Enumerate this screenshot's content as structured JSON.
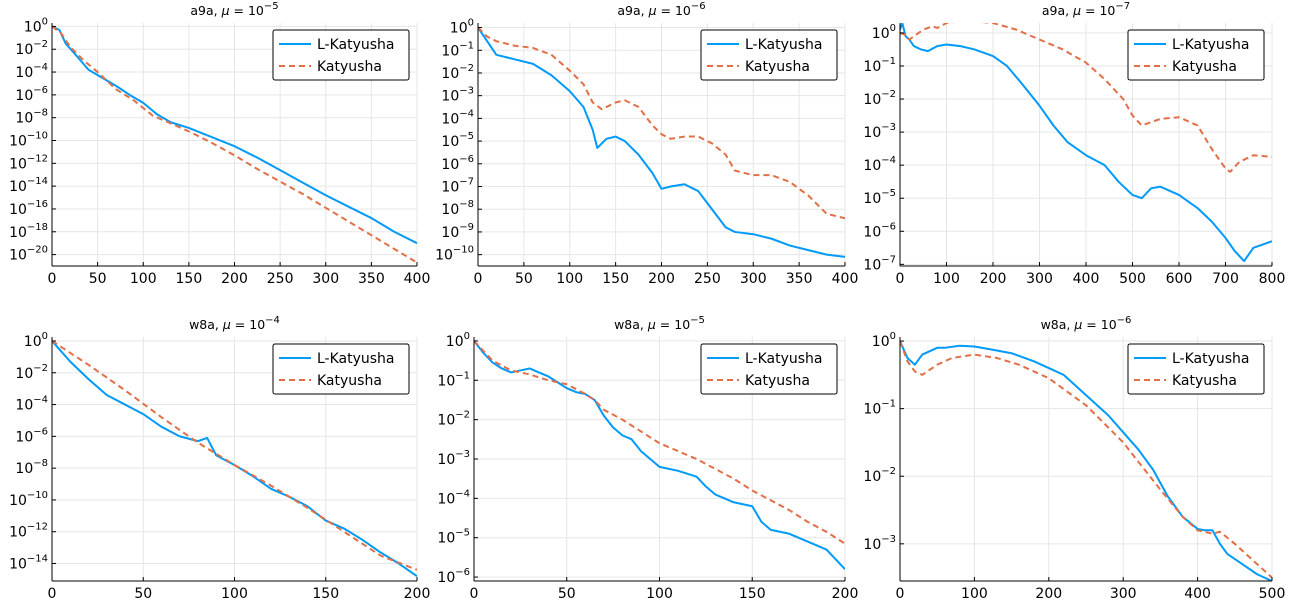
{
  "colors": {
    "l_katyusha": "#009AFA",
    "katyusha": "#E26F46",
    "grid": "#E6E6E6"
  },
  "legend": {
    "series_a": "L-Katyusha",
    "series_b": "Katyusha",
    "placement": "top-right"
  },
  "chart_data": [
    {
      "type": "line",
      "title": "a9a, μ = 10^{-5}",
      "title_parts": {
        "prefix": "a9a, ",
        "symbol": "μ",
        "eq": " = 10",
        "exp": "−5"
      },
      "yscale": "log10",
      "xlim": [
        0,
        400
      ],
      "ylim_log10": [
        -21,
        0.3
      ],
      "xticks": [
        0,
        50,
        100,
        150,
        200,
        250,
        300,
        350,
        400
      ],
      "yticks_log10": [
        0,
        -2,
        -4,
        -6,
        -8,
        -10,
        -12,
        -14,
        -16,
        -18,
        -20
      ],
      "grid": true,
      "series": [
        {
          "name": "L-Katyusha",
          "style": "solid",
          "x": [
            0,
            8,
            15,
            25,
            40,
            55,
            70,
            85,
            100,
            115,
            130,
            150,
            175,
            200,
            225,
            250,
            275,
            300,
            325,
            350,
            375,
            400
          ],
          "log10_y": [
            0,
            -0.3,
            -1.5,
            -2.4,
            -3.8,
            -4.5,
            -5.2,
            -6.0,
            -6.7,
            -7.7,
            -8.4,
            -8.9,
            -9.7,
            -10.5,
            -11.5,
            -12.6,
            -13.7,
            -14.8,
            -15.8,
            -16.8,
            -18.0,
            -19.0
          ]
        },
        {
          "name": "Katyusha",
          "style": "dashed",
          "x": [
            0,
            10,
            20,
            35,
            50,
            70,
            90,
            110,
            130,
            150,
            175,
            200,
            225,
            250,
            275,
            300,
            325,
            350,
            375,
            400
          ],
          "log10_y": [
            0,
            -0.6,
            -1.8,
            -3.0,
            -4.0,
            -5.5,
            -6.5,
            -7.8,
            -8.5,
            -9.2,
            -10.2,
            -11.3,
            -12.5,
            -13.6,
            -14.7,
            -15.9,
            -17.1,
            -18.3,
            -19.5,
            -20.7
          ]
        }
      ]
    },
    {
      "type": "line",
      "title": "a9a, μ = 10^{-6}",
      "title_parts": {
        "prefix": "a9a, ",
        "symbol": "μ",
        "eq": " = 10",
        "exp": "−6"
      },
      "yscale": "log10",
      "xlim": [
        0,
        400
      ],
      "ylim_log10": [
        -10.5,
        0.2
      ],
      "xticks": [
        0,
        50,
        100,
        150,
        200,
        250,
        300,
        350,
        400
      ],
      "yticks_log10": [
        0,
        -1,
        -2,
        -3,
        -4,
        -5,
        -6,
        -7,
        -8,
        -9,
        -10
      ],
      "grid": true,
      "series": [
        {
          "name": "L-Katyusha",
          "style": "solid",
          "x": [
            0,
            10,
            20,
            40,
            60,
            80,
            100,
            115,
            125,
            130,
            140,
            150,
            160,
            175,
            190,
            200,
            210,
            225,
            240,
            255,
            270,
            280,
            300,
            320,
            340,
            360,
            380,
            400
          ],
          "log10_y": [
            0,
            -0.6,
            -1.2,
            -1.4,
            -1.6,
            -2.1,
            -2.8,
            -3.5,
            -4.5,
            -5.3,
            -4.9,
            -4.8,
            -5.0,
            -5.6,
            -6.4,
            -7.1,
            -7.0,
            -6.9,
            -7.2,
            -8.0,
            -8.8,
            -9.0,
            -9.1,
            -9.3,
            -9.6,
            -9.8,
            -10.0,
            -10.1
          ]
        },
        {
          "name": "Katyusha",
          "style": "dashed",
          "x": [
            0,
            10,
            20,
            40,
            60,
            80,
            100,
            115,
            125,
            135,
            150,
            160,
            175,
            190,
            200,
            210,
            225,
            240,
            255,
            270,
            280,
            300,
            320,
            340,
            360,
            380,
            400
          ],
          "log10_y": [
            0,
            -0.4,
            -0.6,
            -0.8,
            -0.9,
            -1.2,
            -1.9,
            -2.5,
            -3.3,
            -3.6,
            -3.3,
            -3.2,
            -3.5,
            -4.3,
            -4.7,
            -4.9,
            -4.8,
            -4.8,
            -5.1,
            -5.6,
            -6.3,
            -6.5,
            -6.5,
            -6.8,
            -7.4,
            -8.2,
            -8.4
          ]
        }
      ]
    },
    {
      "type": "line",
      "title": "a9a, μ = 10^{-7}",
      "title_parts": {
        "prefix": "a9a, ",
        "symbol": "μ",
        "eq": " = 10",
        "exp": "−7"
      },
      "yscale": "log10",
      "xlim": [
        0,
        800
      ],
      "ylim_log10": [
        -7.05,
        0.3
      ],
      "xticks": [
        0,
        100,
        200,
        300,
        400,
        500,
        600,
        700,
        800
      ],
      "yticks_log10": [
        0,
        -1,
        -2,
        -3,
        -4,
        -5,
        -6,
        -7
      ],
      "grid": true,
      "series": [
        {
          "name": "L-Katyusha",
          "style": "solid",
          "x": [
            0,
            5,
            12,
            20,
            30,
            45,
            60,
            80,
            100,
            130,
            160,
            200,
            230,
            260,
            300,
            330,
            360,
            400,
            440,
            470,
            500,
            520,
            540,
            560,
            600,
            640,
            670,
            700,
            720,
            740,
            760,
            780,
            800
          ],
          "log10_y": [
            0.1,
            0.3,
            -0.1,
            -0.2,
            -0.4,
            -0.5,
            -0.55,
            -0.4,
            -0.35,
            -0.4,
            -0.5,
            -0.7,
            -1.0,
            -1.5,
            -2.2,
            -2.8,
            -3.3,
            -3.7,
            -4.0,
            -4.5,
            -4.9,
            -5.0,
            -4.7,
            -4.65,
            -4.9,
            -5.3,
            -5.7,
            -6.2,
            -6.6,
            -6.9,
            -6.5,
            -6.4,
            -6.3
          ]
        },
        {
          "name": "Katyusha",
          "style": "dashed",
          "x": [
            0,
            10,
            20,
            35,
            50,
            70,
            80,
            100,
            130,
            160,
            200,
            250,
            300,
            350,
            400,
            440,
            480,
            500,
            520,
            540,
            560,
            600,
            640,
            670,
            700,
            710,
            730,
            760,
            800
          ],
          "log10_y": [
            0,
            -0.05,
            -0.2,
            -0.05,
            0.1,
            0.2,
            0.15,
            0.3,
            0.35,
            0.35,
            0.3,
            0.1,
            -0.2,
            -0.5,
            -0.9,
            -1.4,
            -2.0,
            -2.5,
            -2.8,
            -2.7,
            -2.6,
            -2.55,
            -2.8,
            -3.5,
            -4.1,
            -4.2,
            -3.9,
            -3.7,
            -3.75
          ]
        }
      ]
    },
    {
      "type": "line",
      "title": "w8a, μ = 10^{-4}",
      "title_parts": {
        "prefix": "w8a, ",
        "symbol": "μ",
        "eq": " = 10",
        "exp": "−4"
      },
      "yscale": "log10",
      "xlim": [
        0,
        200
      ],
      "ylim_log10": [
        -15.1,
        0.25
      ],
      "xticks": [
        0,
        50,
        100,
        150,
        200
      ],
      "yticks_log10": [
        0,
        -2,
        -4,
        -6,
        -8,
        -10,
        -12,
        -14
      ],
      "grid": true,
      "series": [
        {
          "name": "L-Katyusha",
          "style": "solid",
          "x": [
            0,
            10,
            20,
            30,
            40,
            50,
            60,
            70,
            80,
            85,
            90,
            100,
            110,
            120,
            130,
            140,
            150,
            160,
            170,
            180,
            190,
            200
          ],
          "log10_y": [
            0,
            -1.3,
            -2.4,
            -3.4,
            -4.0,
            -4.6,
            -5.4,
            -6.0,
            -6.3,
            -6.1,
            -7.2,
            -7.8,
            -8.5,
            -9.3,
            -9.8,
            -10.4,
            -11.3,
            -11.8,
            -12.5,
            -13.3,
            -14.0,
            -14.8
          ]
        },
        {
          "name": "Katyusha",
          "style": "dashed",
          "x": [
            0,
            20,
            40,
            60,
            80,
            100,
            120,
            140,
            160,
            180,
            200
          ],
          "log10_y": [
            0,
            -1.5,
            -3.1,
            -4.8,
            -6.4,
            -7.8,
            -9.1,
            -10.5,
            -12.0,
            -13.5,
            -14.4
          ]
        }
      ]
    },
    {
      "type": "line",
      "title": "w8a, μ = 10^{-5}",
      "title_parts": {
        "prefix": "w8a, ",
        "symbol": "μ",
        "eq": " = 10",
        "exp": "−5"
      },
      "yscale": "log10",
      "xlim": [
        0,
        200
      ],
      "ylim_log10": [
        -6.1,
        0.1
      ],
      "xticks": [
        0,
        50,
        100,
        150,
        200
      ],
      "yticks_log10": [
        0,
        -1,
        -2,
        -3,
        -4,
        -5,
        -6
      ],
      "grid": true,
      "series": [
        {
          "name": "L-Katyusha",
          "style": "solid",
          "x": [
            0,
            5,
            10,
            15,
            20,
            25,
            30,
            35,
            40,
            45,
            50,
            55,
            60,
            65,
            70,
            75,
            80,
            85,
            90,
            95,
            100,
            110,
            120,
            125,
            130,
            140,
            150,
            155,
            160,
            170,
            180,
            190,
            200
          ],
          "log10_y": [
            0,
            -0.3,
            -0.55,
            -0.7,
            -0.8,
            -0.75,
            -0.7,
            -0.8,
            -0.9,
            -1.05,
            -1.2,
            -1.3,
            -1.35,
            -1.5,
            -1.9,
            -2.2,
            -2.4,
            -2.5,
            -2.8,
            -3.0,
            -3.2,
            -3.3,
            -3.45,
            -3.7,
            -3.9,
            -4.1,
            -4.2,
            -4.6,
            -4.8,
            -4.9,
            -5.1,
            -5.3,
            -5.8
          ]
        },
        {
          "name": "Katyusha",
          "style": "dashed",
          "x": [
            0,
            10,
            20,
            30,
            40,
            50,
            60,
            65,
            70,
            80,
            90,
            100,
            110,
            120,
            130,
            140,
            150,
            160,
            170,
            180,
            190,
            200
          ],
          "log10_y": [
            0,
            -0.5,
            -0.75,
            -0.85,
            -1.0,
            -1.1,
            -1.35,
            -1.5,
            -1.75,
            -2.0,
            -2.3,
            -2.6,
            -2.8,
            -3.0,
            -3.25,
            -3.5,
            -3.8,
            -4.05,
            -4.3,
            -4.6,
            -4.85,
            -5.15
          ]
        }
      ]
    },
    {
      "type": "line",
      "title": "w8a, μ = 10^{-6}",
      "title_parts": {
        "prefix": "w8a, ",
        "symbol": "μ",
        "eq": " = 10",
        "exp": "−6"
      },
      "yscale": "log10",
      "xlim": [
        0,
        500
      ],
      "ylim_log10": [
        -3.55,
        0.06
      ],
      "xticks": [
        0,
        100,
        200,
        300,
        400,
        500
      ],
      "yticks_log10": [
        0,
        -1,
        -2,
        -3
      ],
      "grid": true,
      "series": [
        {
          "name": "L-Katyusha",
          "style": "solid",
          "x": [
            0,
            10,
            20,
            30,
            40,
            50,
            60,
            80,
            100,
            120,
            150,
            180,
            200,
            220,
            250,
            280,
            300,
            320,
            340,
            360,
            380,
            400,
            410,
            420,
            430,
            440,
            460,
            480,
            500
          ],
          "log10_y": [
            0,
            -0.25,
            -0.35,
            -0.2,
            -0.15,
            -0.1,
            -0.1,
            -0.07,
            -0.08,
            -0.12,
            -0.18,
            -0.3,
            -0.4,
            -0.5,
            -0.8,
            -1.1,
            -1.35,
            -1.6,
            -1.9,
            -2.3,
            -2.6,
            -2.78,
            -2.8,
            -2.8,
            -3.0,
            -3.15,
            -3.3,
            -3.45,
            -3.55
          ]
        },
        {
          "name": "Katyusha",
          "style": "dashed",
          "x": [
            0,
            10,
            20,
            30,
            50,
            70,
            100,
            130,
            160,
            200,
            250,
            300,
            350,
            380,
            400,
            420,
            430,
            450,
            480,
            500
          ],
          "log10_y": [
            0,
            -0.3,
            -0.45,
            -0.5,
            -0.35,
            -0.25,
            -0.2,
            -0.25,
            -0.35,
            -0.55,
            -0.95,
            -1.5,
            -2.2,
            -2.6,
            -2.8,
            -2.85,
            -2.82,
            -3.0,
            -3.3,
            -3.5
          ]
        }
      ]
    }
  ]
}
